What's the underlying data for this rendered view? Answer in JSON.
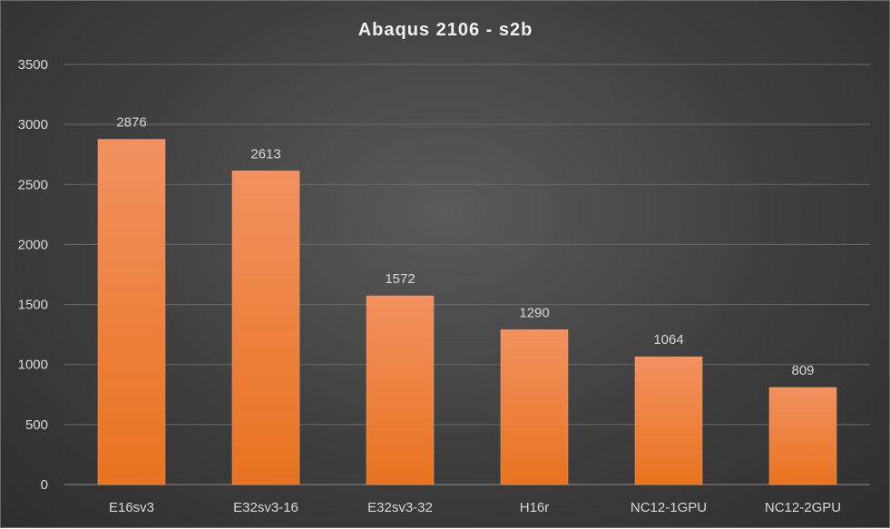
{
  "chart_data": {
    "type": "bar",
    "title": "Abaqus 2106 - s2b",
    "xlabel": "",
    "ylabel": "",
    "categories": [
      "E16sv3",
      "E32sv3-16",
      "E32sv3-32",
      "H16r",
      "NC12-1GPU",
      "NC12-2GPU"
    ],
    "values": [
      2876,
      2613,
      1572,
      1290,
      1064,
      809
    ],
    "ylim": [
      0,
      3500
    ],
    "yticks": [
      0,
      500,
      1000,
      1500,
      2000,
      2500,
      3000,
      3500
    ],
    "grid": true,
    "legend": "none",
    "data_labels": true,
    "colors": {
      "bar_top": "#f29160",
      "bar_bottom": "#e8731f",
      "background": "#404040"
    }
  }
}
